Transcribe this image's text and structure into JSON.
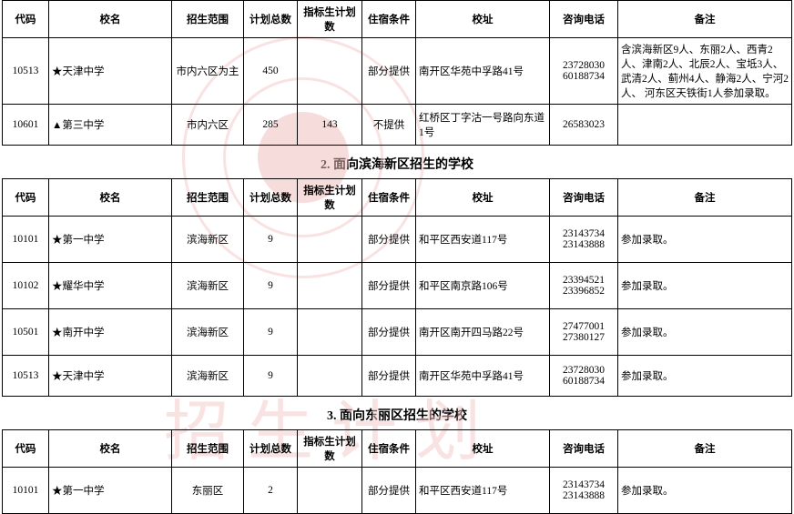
{
  "headers": {
    "code": "代码",
    "name": "校名",
    "scope": "招生范围",
    "total": "计划总数",
    "quota": "指标生计划数",
    "dorm": "住宿条件",
    "addr": "校址",
    "phone": "咨询电话",
    "note": "备注"
  },
  "section1_rows": [
    {
      "code": "10513",
      "name": "★天津中学",
      "scope": "市内六区为主",
      "total": "450",
      "quota": "",
      "dorm": "部分提供",
      "addr": "南开区华苑中孚路41号",
      "phone": "23728030 60188734",
      "note": "含滨海新区9人、东丽2人、西青2人、津南2人、北辰2人、宝坻3人、武清2人、蓟州4人、静海2人、宁河2人、 河东区天铁街1人参加录取。"
    },
    {
      "code": "10601",
      "name": "▲第三中学",
      "scope": "市内六区",
      "total": "285",
      "quota": "143",
      "dorm": "不提供",
      "addr": "红桥区丁字沽一号路向东道1号",
      "phone": "26583023",
      "note": ""
    }
  ],
  "section2_title": "2. 面向滨海新区招生的学校",
  "section2_rows": [
    {
      "code": "10101",
      "name": "★第一中学",
      "scope": "滨海新区",
      "total": "9",
      "quota": "",
      "dorm": "部分提供",
      "addr": "和平区西安道117号",
      "phone": "23143734 23143888",
      "note": "参加录取。"
    },
    {
      "code": "10102",
      "name": "★耀华中学",
      "scope": "滨海新区",
      "total": "9",
      "quota": "",
      "dorm": "部分提供",
      "addr": "和平区南京路106号",
      "phone": "23394521 23396852",
      "note": "参加录取。"
    },
    {
      "code": "10501",
      "name": "★南开中学",
      "scope": "滨海新区",
      "total": "9",
      "quota": "",
      "dorm": "部分提供",
      "addr": "南开区南开四马路22号",
      "phone": "27477001 27380127",
      "note": "参加录取。"
    },
    {
      "code": "10513",
      "name": "★天津中学",
      "scope": "滨海新区",
      "total": "9",
      "quota": "",
      "dorm": "部分提供",
      "addr": "南开区华苑中孚路41号",
      "phone": "23728030 60188734",
      "note": "参加录取。"
    }
  ],
  "section3_title": "3. 面向东丽区招生的学校",
  "section3_rows": [
    {
      "code": "10101",
      "name": "★第一中学",
      "scope": "东丽区",
      "total": "2",
      "quota": "",
      "dorm": "部分提供",
      "addr": "和平区西安道117号",
      "phone": "23143734 23143888",
      "note": "参加录取。"
    }
  ],
  "watermark_chars": "招生计划"
}
